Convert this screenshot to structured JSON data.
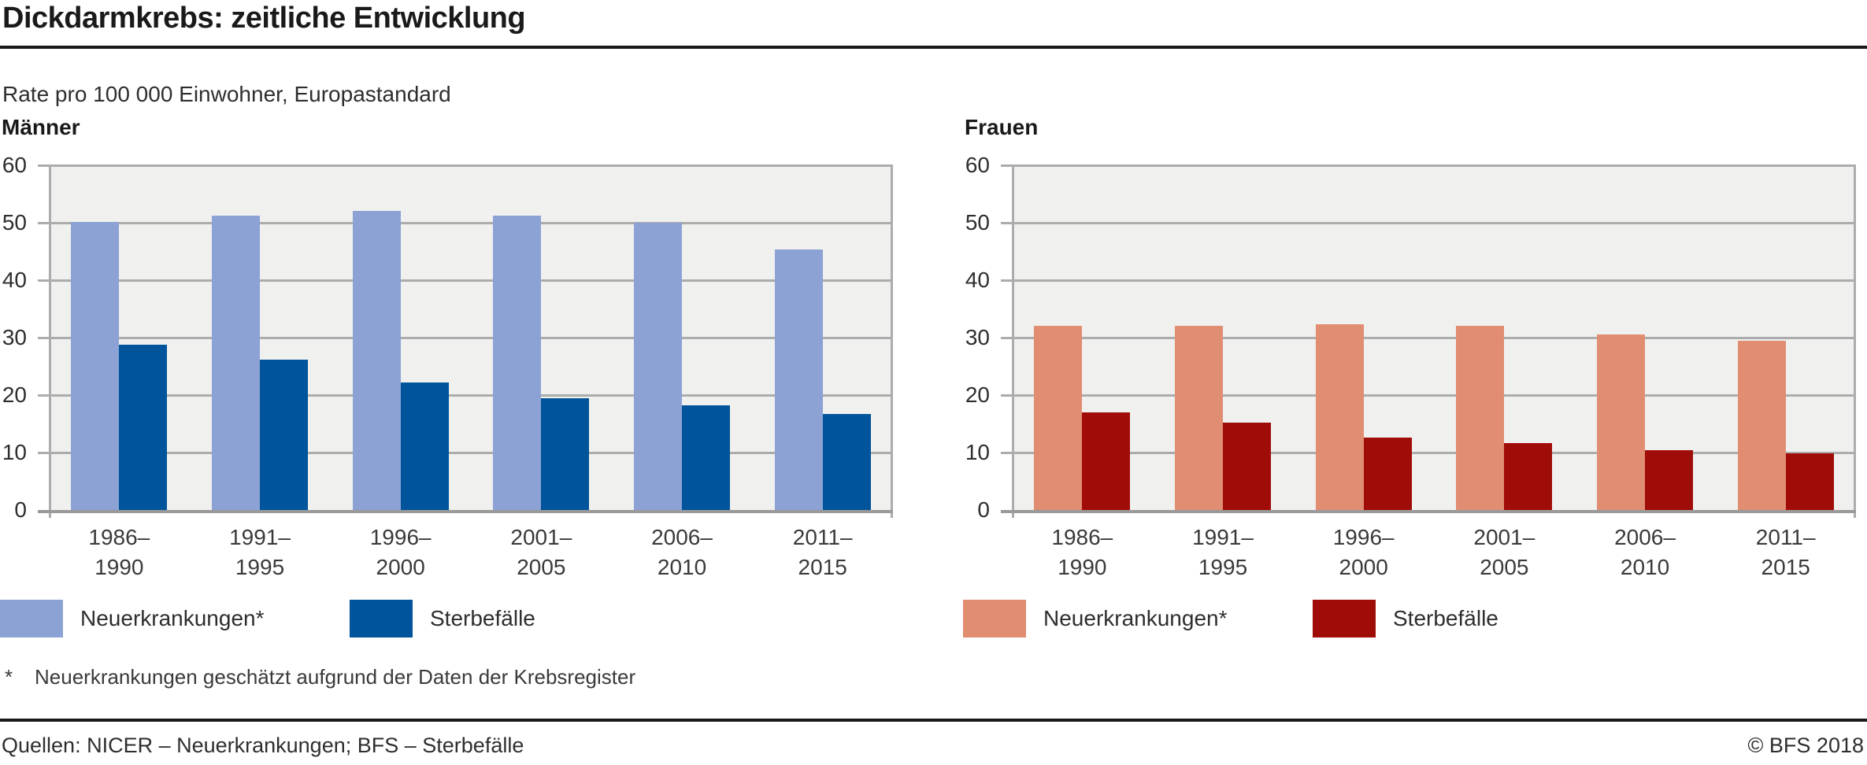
{
  "header": {
    "title": "Dickdarmkrebs: zeitliche Entwicklung",
    "subtitle": "Rate pro 100 000 Einwohner, Europastandard"
  },
  "footnote": {
    "marker": "*",
    "text": "Neuerkrankungen geschätzt aufgrund der Daten der Krebsregister"
  },
  "footer": {
    "sources": "Quellen: NICER – Neuerkrankungen; BFS – Sterbefälle",
    "copyright": "© BFS 2018"
  },
  "chart_data": [
    {
      "type": "bar",
      "title": "Männer",
      "ylabel": "Rate pro 100 000 Einwohner, Europastandard",
      "ylim": [
        0,
        60
      ],
      "yticks": [
        0,
        10,
        20,
        30,
        40,
        50,
        60
      ],
      "grid": true,
      "legend_position": "bottom",
      "plot_background": "#f0f0ef",
      "categories": [
        {
          "line1": "1986–",
          "line2": "1990"
        },
        {
          "line1": "1991–",
          "line2": "1995"
        },
        {
          "line1": "1996–",
          "line2": "2000"
        },
        {
          "line1": "2001–",
          "line2": "2005"
        },
        {
          "line1": "2006–",
          "line2": "2010"
        },
        {
          "line1": "2011–",
          "line2": "2015"
        }
      ],
      "series": [
        {
          "name": "Neuerkrankungen*",
          "color": "#8ca2d4",
          "values": [
            50.1,
            51.3,
            52.0,
            51.3,
            50.0,
            45.4
          ]
        },
        {
          "name": "Sterbefälle",
          "color": "#00549b",
          "values": [
            28.8,
            26.2,
            22.2,
            19.4,
            18.2,
            16.7
          ]
        }
      ]
    },
    {
      "type": "bar",
      "title": "Frauen",
      "ylabel": "Rate pro 100 000 Einwohner, Europastandard",
      "ylim": [
        0,
        60
      ],
      "yticks": [
        0,
        10,
        20,
        30,
        40,
        50,
        60
      ],
      "grid": true,
      "legend_position": "bottom",
      "plot_background": "#f0f0ef",
      "categories": [
        {
          "line1": "1986–",
          "line2": "1990"
        },
        {
          "line1": "1991–",
          "line2": "1995"
        },
        {
          "line1": "1996–",
          "line2": "2000"
        },
        {
          "line1": "2001–",
          "line2": "2005"
        },
        {
          "line1": "2006–",
          "line2": "2010"
        },
        {
          "line1": "2011–",
          "line2": "2015"
        }
      ],
      "series": [
        {
          "name": "Neuerkrankungen*",
          "color": "#e08d72",
          "values": [
            32.1,
            32.0,
            32.3,
            32.1,
            30.5,
            29.5
          ]
        },
        {
          "name": "Sterbefälle",
          "color": "#a00c07",
          "values": [
            17.0,
            15.2,
            12.6,
            11.6,
            10.4,
            9.9
          ]
        }
      ]
    }
  ]
}
